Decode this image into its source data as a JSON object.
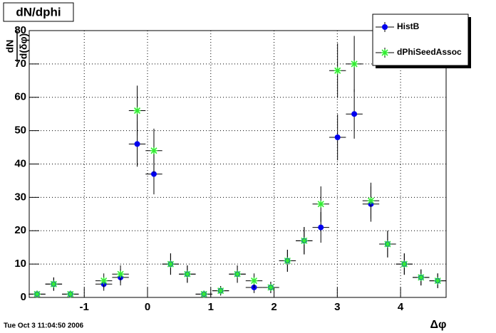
{
  "chart_data": {
    "type": "errorbar",
    "title": "dN/dphi",
    "y_label_numerator": "dN",
    "y_label_denominator": "d(δφ)",
    "x_label": "Δφ",
    "timestamp": "Tue Oct  3 11:04:50 2006",
    "x": [
      -1.746,
      -1.483,
      -1.219,
      -0.955,
      -0.691,
      -0.427,
      -0.163,
      0.101,
      0.365,
      0.629,
      0.892,
      1.156,
      1.42,
      1.684,
      1.948,
      2.212,
      2.476,
      2.74,
      3.004,
      3.268,
      3.531,
      3.795,
      4.059,
      4.323,
      4.587
    ],
    "xerr": 0.132,
    "series": [
      {
        "name": "HistB",
        "color": "#0000ee",
        "marker": "circle",
        "values": [
          1,
          4,
          1,
          null,
          4,
          6,
          46,
          37,
          10,
          7,
          1,
          2,
          7,
          3,
          3,
          11,
          17,
          21,
          48,
          55,
          28,
          16,
          10,
          6,
          5
        ],
        "errors": [
          1,
          2,
          1,
          null,
          2,
          2.4,
          6.8,
          6.1,
          3.2,
          2.6,
          1,
          1.4,
          2.6,
          1.7,
          1.7,
          3.3,
          4.1,
          4.6,
          6.9,
          7.4,
          5.3,
          4,
          3.2,
          2.4,
          2.2
        ]
      },
      {
        "name": "dPhiSeedAssoc",
        "color": "#33ee33",
        "marker": "star",
        "values": [
          1,
          4,
          1,
          null,
          5,
          7,
          56,
          44,
          10,
          7,
          1,
          2,
          7,
          5,
          3,
          11,
          17,
          28,
          68,
          70,
          29,
          16,
          10,
          6,
          5
        ],
        "errors": [
          1,
          2,
          1,
          null,
          2.2,
          2.6,
          7.5,
          6.6,
          3.2,
          2.6,
          1,
          1.4,
          2.6,
          2.2,
          1.7,
          3.3,
          4.1,
          5.3,
          8.2,
          8.4,
          5.4,
          4,
          3.2,
          2.4,
          2.2
        ]
      }
    ],
    "xlim": [
      -1.87,
      4.72
    ],
    "xticks": [
      -1,
      0,
      1,
      2,
      3,
      4
    ],
    "ylim": [
      0,
      80
    ],
    "yticks": [
      0,
      10,
      20,
      30,
      40,
      50,
      60,
      70,
      80
    ],
    "grid": true,
    "legend": "top-right"
  }
}
